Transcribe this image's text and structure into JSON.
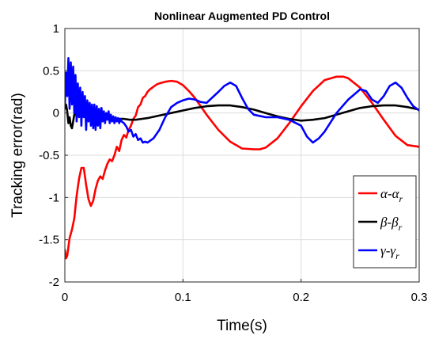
{
  "chart_data": {
    "type": "line",
    "title": "Nonlinear Augmented PD Control",
    "xlabel": "Time(s)",
    "ylabel": "Tracking error(rad)",
    "xlim": [
      0,
      0.3
    ],
    "ylim": [
      -2,
      1
    ],
    "xticks": [
      0,
      0.1,
      0.2,
      0.3
    ],
    "xtick_labels": [
      "0",
      "0.1",
      "0.2",
      "0.3"
    ],
    "yticks": [
      1,
      0.5,
      0,
      -0.5,
      -1,
      -1.5,
      -2
    ],
    "ytick_labels": [
      "1",
      "0.5",
      "0",
      "-0.5",
      "-1",
      "-1.5",
      "-2"
    ],
    "grid": true,
    "legend_position": "bottom-right",
    "series": [
      {
        "name": "α-α_r",
        "legend": {
          "main": "α",
          "sub": "r"
        },
        "color": "#ff0000",
        "x": [
          0.0,
          0.001,
          0.002,
          0.004,
          0.006,
          0.008,
          0.01,
          0.012,
          0.014,
          0.016,
          0.018,
          0.02,
          0.022,
          0.024,
          0.026,
          0.028,
          0.03,
          0.032,
          0.034,
          0.036,
          0.038,
          0.04,
          0.042,
          0.044,
          0.046,
          0.048,
          0.05,
          0.052,
          0.054,
          0.056,
          0.058,
          0.06,
          0.062,
          0.064,
          0.066,
          0.068,
          0.07,
          0.072,
          0.074,
          0.076,
          0.078,
          0.08,
          0.085,
          0.09,
          0.095,
          0.1,
          0.105,
          0.11,
          0.12,
          0.13,
          0.14,
          0.15,
          0.16,
          0.165,
          0.17,
          0.18,
          0.19,
          0.2,
          0.21,
          0.22,
          0.23,
          0.236,
          0.24,
          0.25,
          0.26,
          0.27,
          0.28,
          0.29,
          0.3
        ],
        "y": [
          -1.62,
          -1.72,
          -1.69,
          -1.48,
          -1.38,
          -1.25,
          -0.98,
          -0.78,
          -0.65,
          -0.65,
          -0.85,
          -1.02,
          -1.1,
          -1.04,
          -0.9,
          -0.8,
          -0.75,
          -0.78,
          -0.68,
          -0.6,
          -0.55,
          -0.57,
          -0.5,
          -0.4,
          -0.45,
          -0.32,
          -0.26,
          -0.29,
          -0.2,
          -0.15,
          -0.07,
          -0.03,
          0.07,
          0.1,
          0.18,
          0.2,
          0.25,
          0.28,
          0.3,
          0.32,
          0.34,
          0.35,
          0.37,
          0.38,
          0.37,
          0.33,
          0.26,
          0.18,
          -0.02,
          -0.2,
          -0.34,
          -0.42,
          -0.43,
          -0.43,
          -0.41,
          -0.3,
          -0.12,
          0.08,
          0.26,
          0.39,
          0.43,
          0.43,
          0.41,
          0.3,
          0.12,
          -0.08,
          -0.27,
          -0.38,
          -0.4
        ]
      },
      {
        "name": "β-β_r",
        "legend": {
          "main": "β",
          "sub": "r"
        },
        "color": "#000000",
        "x": [
          0.0,
          0.001,
          0.002,
          0.003,
          0.004,
          0.005,
          0.006,
          0.007,
          0.008,
          0.009,
          0.01,
          0.012,
          0.014,
          0.016,
          0.018,
          0.02,
          0.022,
          0.024,
          0.026,
          0.028,
          0.03,
          0.035,
          0.04,
          0.045,
          0.05,
          0.055,
          0.06,
          0.065,
          0.07,
          0.08,
          0.09,
          0.1,
          0.11,
          0.12,
          0.13,
          0.14,
          0.15,
          0.16,
          0.17,
          0.18,
          0.19,
          0.2,
          0.21,
          0.22,
          0.23,
          0.24,
          0.25,
          0.26,
          0.27,
          0.28,
          0.29,
          0.3
        ],
        "y": [
          0.05,
          0.1,
          0.02,
          -0.12,
          -0.05,
          -0.15,
          -0.18,
          -0.1,
          -0.02,
          0.02,
          -0.05,
          0.02,
          -0.06,
          0.0,
          -0.04,
          0.02,
          -0.06,
          0.0,
          -0.03,
          0.02,
          -0.04,
          -0.05,
          -0.06,
          -0.07,
          -0.07,
          -0.08,
          -0.08,
          -0.07,
          -0.06,
          -0.03,
          0.0,
          0.03,
          0.06,
          0.08,
          0.09,
          0.09,
          0.07,
          0.04,
          0.0,
          -0.04,
          -0.07,
          -0.09,
          -0.08,
          -0.06,
          -0.02,
          0.02,
          0.06,
          0.08,
          0.09,
          0.09,
          0.07,
          0.04
        ]
      },
      {
        "name": "γ-γ_r",
        "legend": {
          "main": "γ",
          "sub": "r"
        },
        "color": "#0000ff",
        "x": [
          0.0,
          0.001,
          0.002,
          0.003,
          0.004,
          0.005,
          0.006,
          0.007,
          0.008,
          0.009,
          0.01,
          0.011,
          0.012,
          0.013,
          0.014,
          0.015,
          0.016,
          0.017,
          0.018,
          0.019,
          0.02,
          0.021,
          0.022,
          0.023,
          0.024,
          0.025,
          0.026,
          0.027,
          0.028,
          0.029,
          0.03,
          0.031,
          0.032,
          0.033,
          0.034,
          0.035,
          0.036,
          0.037,
          0.038,
          0.039,
          0.04,
          0.041,
          0.042,
          0.043,
          0.044,
          0.045,
          0.046,
          0.047,
          0.048,
          0.05,
          0.052,
          0.054,
          0.056,
          0.058,
          0.06,
          0.062,
          0.064,
          0.066,
          0.068,
          0.07,
          0.075,
          0.08,
          0.085,
          0.09,
          0.095,
          0.1,
          0.105,
          0.11,
          0.115,
          0.12,
          0.13,
          0.135,
          0.14,
          0.145,
          0.15,
          0.155,
          0.16,
          0.17,
          0.18,
          0.19,
          0.2,
          0.205,
          0.21,
          0.215,
          0.22,
          0.23,
          0.24,
          0.245,
          0.25,
          0.255,
          0.26,
          0.265,
          0.27,
          0.275,
          0.28,
          0.285,
          0.29,
          0.295,
          0.3
        ],
        "y": [
          0.1,
          0.48,
          0.2,
          0.65,
          0.05,
          0.6,
          0.1,
          0.55,
          0.0,
          0.45,
          -0.1,
          0.35,
          -0.05,
          0.3,
          -0.15,
          0.25,
          -0.05,
          0.2,
          -0.2,
          0.15,
          -0.1,
          0.12,
          -0.15,
          0.1,
          -0.18,
          0.1,
          -0.2,
          0.08,
          -0.15,
          0.05,
          -0.18,
          0.06,
          -0.1,
          0.02,
          -0.12,
          0.0,
          -0.08,
          0.02,
          -0.12,
          -0.02,
          -0.1,
          -0.04,
          -0.12,
          -0.05,
          -0.1,
          -0.06,
          -0.12,
          -0.07,
          -0.1,
          -0.12,
          -0.16,
          -0.22,
          -0.2,
          -0.28,
          -0.25,
          -0.32,
          -0.3,
          -0.35,
          -0.34,
          -0.35,
          -0.3,
          -0.2,
          -0.05,
          0.07,
          0.12,
          0.15,
          0.17,
          0.16,
          0.13,
          0.12,
          0.25,
          0.32,
          0.36,
          0.32,
          0.18,
          0.05,
          -0.02,
          -0.05,
          -0.05,
          -0.08,
          -0.15,
          -0.28,
          -0.35,
          -0.3,
          -0.22,
          0.0,
          0.16,
          0.22,
          0.28,
          0.26,
          0.16,
          0.12,
          0.2,
          0.32,
          0.36,
          0.3,
          0.18,
          0.08,
          0.03
        ]
      }
    ]
  }
}
